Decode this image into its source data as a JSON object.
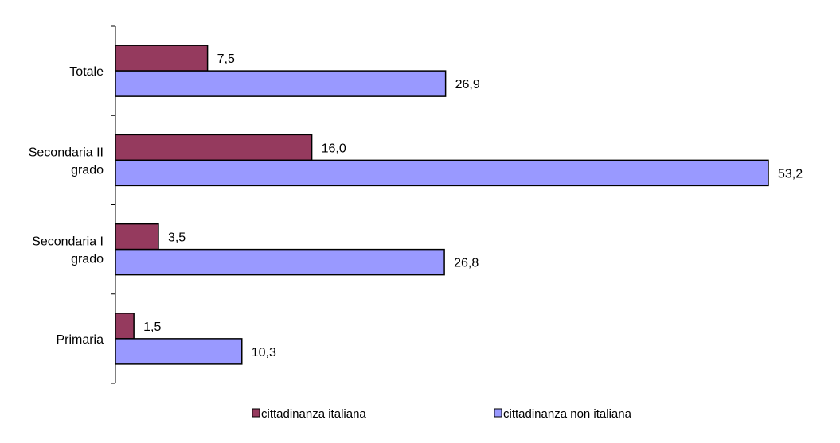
{
  "chart_data": {
    "type": "bar",
    "orientation": "horizontal",
    "categories": [
      [
        "Totale"
      ],
      [
        "Secondaria II",
        "grado"
      ],
      [
        "Secondaria I",
        "grado"
      ],
      [
        "Primaria"
      ]
    ],
    "series": [
      {
        "name": "cittadinanza italiana",
        "color": "#953a5e",
        "values": [
          7.5,
          16.0,
          3.5,
          1.5
        ],
        "labels": [
          "7,5",
          "16,0",
          "3,5",
          "1,5"
        ]
      },
      {
        "name": "cittadinanza non italiana",
        "color": "#9999ff",
        "values": [
          26.9,
          53.2,
          26.8,
          10.3
        ],
        "labels": [
          "26,9",
          "53,2",
          "26,8",
          "10,3"
        ]
      }
    ],
    "xlim": [
      0,
      53.2
    ],
    "grid": false,
    "legend": "bottom"
  }
}
